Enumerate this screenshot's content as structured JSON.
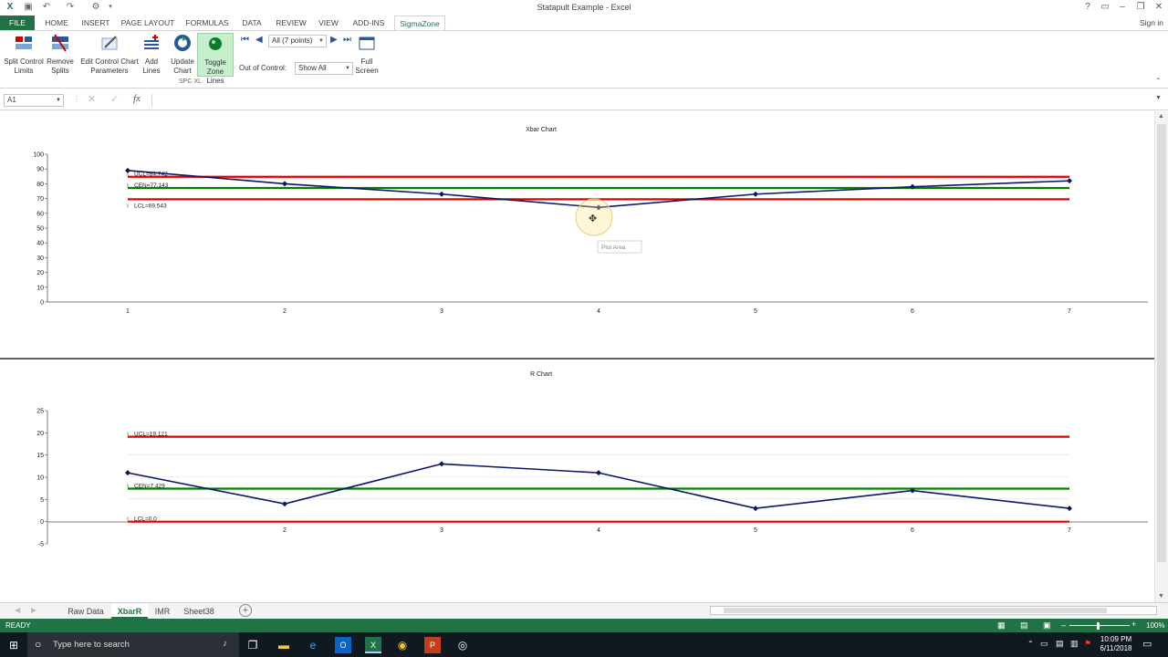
{
  "window": {
    "title": "Statapult Example - Excel",
    "signin": "Sign in"
  },
  "ribbon_tabs": [
    "FILE",
    "HOME",
    "INSERT",
    "PAGE LAYOUT",
    "FORMULAS",
    "DATA",
    "REVIEW",
    "VIEW",
    "ADD-INS",
    "SigmaZone"
  ],
  "ribbon": {
    "split_control_limits": "Split Control Limits",
    "remove_splits": "Remove Splits",
    "edit_control_chart_parameters": "Edit Control Chart Parameters",
    "add_lines": "Add Lines",
    "update_chart": "Update Chart",
    "toggle_zone_lines": "Toggle Zone Lines",
    "points_select": "All (7 points)",
    "out_of_control_label": "Out of Control:",
    "out_of_control_value": "Show All",
    "full_screen": "Full Screen",
    "group_label": "SPC XL"
  },
  "formula_bar": {
    "name_box": "A1",
    "fx": "fx",
    "value": ""
  },
  "tooltip": "Plot Area",
  "chart_data": [
    {
      "type": "line",
      "title": "Xbar Chart",
      "x": [
        1,
        2,
        3,
        4,
        5,
        6,
        7
      ],
      "x_ticks": [
        "1",
        "2",
        "3",
        "4",
        "5",
        "6",
        "7"
      ],
      "series": [
        {
          "values": [
            89,
            80,
            73,
            64,
            73,
            78,
            82
          ]
        }
      ],
      "limits": {
        "ucl": 84.742,
        "cen": 77.143,
        "lcl": 69.543
      },
      "limit_labels": {
        "ucl": "UCL=84.742",
        "cen": "CEN=77.143",
        "lcl": "LCL=69.543"
      },
      "ylim": [
        0,
        100
      ],
      "y_ticks": [
        "100",
        "90",
        "80",
        "70",
        "60",
        "50",
        "40",
        "30",
        "20",
        "10",
        "0"
      ]
    },
    {
      "type": "line",
      "title": "R Chart",
      "x": [
        1,
        2,
        3,
        4,
        5,
        6,
        7
      ],
      "x_ticks": [
        "2",
        "3",
        "4",
        "5",
        "6",
        "7"
      ],
      "series": [
        {
          "values": [
            11,
            4,
            13,
            11,
            3,
            7,
            3
          ]
        }
      ],
      "limits": {
        "ucl": 19.121,
        "cen": 7.429,
        "lcl": 0.0
      },
      "limit_labels": {
        "ucl": "UCL=19.121",
        "cen": "CEN=7.429",
        "lcl": "LCL=0.0"
      },
      "ylim": [
        -5,
        25
      ],
      "y_ticks": [
        "25",
        "20",
        "15",
        "10",
        "5",
        "0",
        "-5"
      ]
    }
  ],
  "sheet_tabs": [
    "Raw Data",
    "XbarR",
    "IMR",
    "Sheet38"
  ],
  "status": {
    "ready": "READY",
    "zoom": "100%"
  },
  "taskbar": {
    "search_placeholder": "Type here to search",
    "time": "10:09 PM",
    "date": "6/11/2018"
  },
  "colors": {
    "excel_green": "#217346",
    "limit_red": "#e00000",
    "center_green": "#008000",
    "series_navy": "#0b1766"
  }
}
